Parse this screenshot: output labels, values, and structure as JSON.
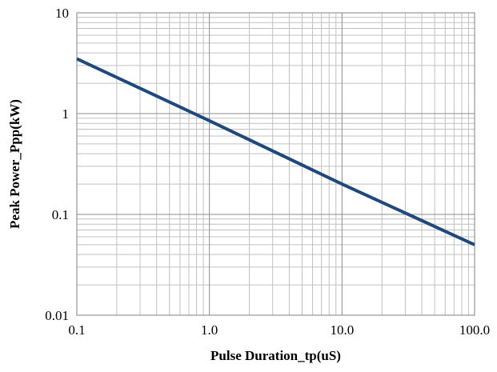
{
  "chart_data": {
    "type": "line",
    "title": "",
    "xlabel": "Pulse Duration_tp(uS)",
    "ylabel": "Peak  Power_Ppp(kW)",
    "x_scale": "log",
    "y_scale": "log",
    "xlim": [
      0.1,
      100
    ],
    "ylim": [
      0.01,
      10
    ],
    "x_ticks": [
      0.1,
      1,
      10,
      100
    ],
    "x_tick_labels": [
      "0.1",
      "1.0",
      "10.0",
      "100.0"
    ],
    "y_ticks": [
      0.01,
      0.1,
      1,
      10
    ],
    "y_tick_labels": [
      "0.01",
      "0.1",
      "1",
      "10"
    ],
    "grid": true,
    "legend": "none",
    "series": [
      {
        "color": "#1f497d",
        "x": [
          0.1,
          1,
          10,
          100
        ],
        "y": [
          3.5,
          0.85,
          0.2,
          0.05
        ]
      }
    ]
  }
}
